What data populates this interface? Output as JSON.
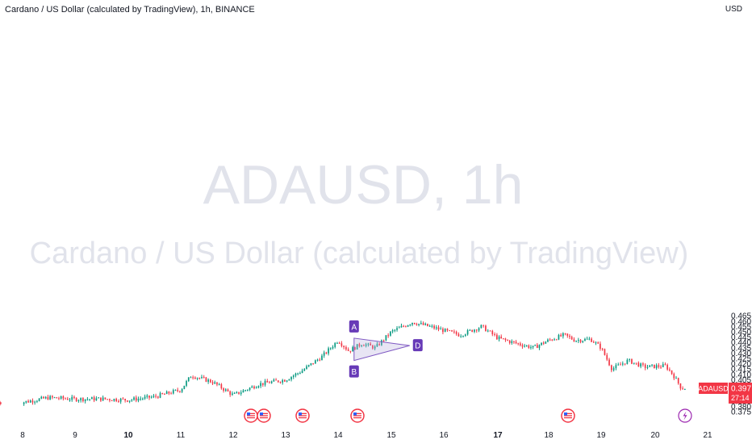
{
  "header": {
    "title": "Cardano / US Dollar (calculated by TradingView), 1h, BINANCE",
    "currency": "USD"
  },
  "watermark": {
    "symbol": "ADAUSD, 1h",
    "name": "Cardano / US Dollar (calculated by TradingView)"
  },
  "price_tag": {
    "symbol": "ADAUSD",
    "price": "0.397",
    "countdown": "27:14",
    "color": "#f23645"
  },
  "colors": {
    "up": "#089981",
    "down": "#f23645",
    "pattern_fill": "#b2a8d9",
    "pattern_stroke": "#7e57c2",
    "pattern_label_bg": "#673ab7"
  },
  "pattern": {
    "type": "triangle",
    "points": [
      {
        "label": "A",
        "x": "14",
        "y": 0.444
      },
      {
        "label": "B",
        "x": "14",
        "y": 0.423
      },
      {
        "label": "D",
        "x": "15",
        "y": 0.437
      }
    ]
  },
  "event_markers": [
    {
      "icon": "us-flag-icon",
      "x": "12"
    },
    {
      "icon": "us-flag-icon",
      "x": "12"
    },
    {
      "icon": "us-flag-icon",
      "x": "13"
    },
    {
      "icon": "us-flag-icon",
      "x": "14"
    },
    {
      "icon": "us-flag-icon",
      "x": "18"
    },
    {
      "icon": "lightning-icon",
      "x": "20"
    }
  ],
  "chart_data": {
    "type": "candlestick",
    "title": "Cardano / US Dollar (calculated by TradingView), 1h, BINANCE",
    "ylabel": "USD",
    "ylim": [
      0.373,
      0.468
    ],
    "y_ticks": [
      "0.375",
      "0.380",
      "0.385",
      "0.390",
      "0.395",
      "0.400",
      "0.405",
      "0.410",
      "0.415",
      "0.420",
      "0.425",
      "0.430",
      "0.435",
      "0.440",
      "0.445",
      "0.450",
      "0.455",
      "0.460",
      "0.465"
    ],
    "x_ticks": [
      "8",
      "9",
      "10",
      "11",
      "12",
      "13",
      "14",
      "15",
      "16",
      "17",
      "18",
      "19",
      "20",
      "21"
    ],
    "x_tick_bold": [
      "10",
      "17"
    ],
    "series": [
      {
        "day": 8.0,
        "close": 0.3838
      },
      {
        "day": 8.5,
        "close": 0.3882
      },
      {
        "day": 9.0,
        "close": 0.3868
      },
      {
        "day": 9.5,
        "close": 0.387
      },
      {
        "day": 10.0,
        "close": 0.386
      },
      {
        "day": 10.5,
        "close": 0.389
      },
      {
        "day": 11.0,
        "close": 0.3955
      },
      {
        "day": 11.2,
        "close": 0.409
      },
      {
        "day": 11.6,
        "close": 0.403
      },
      {
        "day": 12.0,
        "close": 0.3905
      },
      {
        "day": 12.5,
        "close": 0.401
      },
      {
        "day": 13.0,
        "close": 0.405
      },
      {
        "day": 13.3,
        "close": 0.413
      },
      {
        "day": 13.7,
        "close": 0.427
      },
      {
        "day": 14.0,
        "close": 0.442
      },
      {
        "day": 14.2,
        "close": 0.432
      },
      {
        "day": 14.45,
        "close": 0.439
      },
      {
        "day": 14.7,
        "close": 0.435
      },
      {
        "day": 15.0,
        "close": 0.45
      },
      {
        "day": 15.4,
        "close": 0.459
      },
      {
        "day": 15.8,
        "close": 0.454
      },
      {
        "day": 16.3,
        "close": 0.447
      },
      {
        "day": 16.7,
        "close": 0.455
      },
      {
        "day": 17.0,
        "close": 0.444
      },
      {
        "day": 17.3,
        "close": 0.44
      },
      {
        "day": 17.7,
        "close": 0.435
      },
      {
        "day": 18.0,
        "close": 0.442
      },
      {
        "day": 18.3,
        "close": 0.447
      },
      {
        "day": 18.5,
        "close": 0.442
      },
      {
        "day": 18.8,
        "close": 0.443
      },
      {
        "day": 19.0,
        "close": 0.435
      },
      {
        "day": 19.2,
        "close": 0.415
      },
      {
        "day": 19.5,
        "close": 0.423
      },
      {
        "day": 19.8,
        "close": 0.417
      },
      {
        "day": 20.2,
        "close": 0.418
      },
      {
        "day": 20.35,
        "close": 0.409
      },
      {
        "day": 20.5,
        "close": 0.397
      }
    ]
  }
}
